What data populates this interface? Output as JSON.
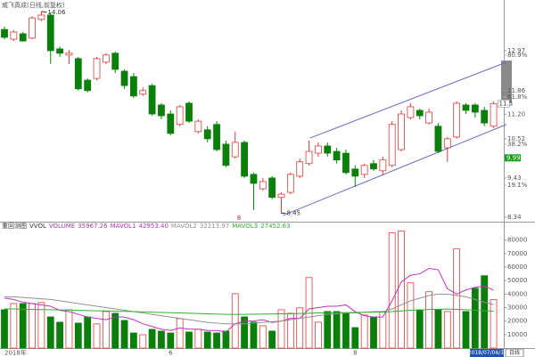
{
  "chart_data": [
    {
      "type": "candlestick",
      "title": "威飞真成(日线,前复权)",
      "categories": [
        "2018年",
        null,
        null,
        null,
        null,
        null,
        null,
        null,
        null,
        null,
        null,
        null,
        null,
        null,
        null,
        null,
        null,
        null,
        "6",
        null,
        null,
        null,
        null,
        null,
        null,
        null,
        null,
        null,
        null,
        null,
        null,
        null,
        null,
        null,
        null,
        null,
        null,
        null,
        "8",
        null,
        null,
        null,
        null,
        null,
        null,
        null,
        null,
        null,
        null,
        null,
        null,
        null,
        null,
        null
      ],
      "ohlc": [
        [
          13.56,
          13.64,
          13.29,
          13.34
        ],
        [
          13.29,
          13.54,
          13.24,
          13.49
        ],
        [
          13.44,
          13.49,
          13.22,
          13.24
        ],
        [
          13.32,
          13.93,
          13.29,
          13.88
        ],
        [
          13.84,
          14.06,
          13.79,
          13.96
        ],
        [
          13.96,
          14.03,
          12.6,
          12.97
        ],
        [
          13.02,
          13.09,
          12.8,
          12.9
        ],
        [
          12.85,
          12.99,
          12.6,
          12.9
        ],
        [
          12.75,
          12.8,
          11.86,
          11.91
        ],
        [
          12.15,
          12.2,
          11.81,
          11.86
        ],
        [
          12.2,
          12.8,
          12.15,
          12.75
        ],
        [
          12.65,
          12.9,
          12.6,
          12.85
        ],
        [
          12.9,
          12.94,
          12.35,
          12.45
        ],
        [
          12.4,
          12.45,
          11.91,
          12.0
        ],
        [
          12.25,
          12.35,
          11.66,
          11.71
        ],
        [
          11.76,
          11.95,
          11.71,
          11.86
        ],
        [
          12.0,
          12.05,
          11.16,
          11.21
        ],
        [
          11.46,
          11.51,
          11.06,
          11.16
        ],
        [
          11.21,
          11.31,
          10.62,
          10.67
        ],
        [
          10.92,
          11.46,
          10.87,
          11.41
        ],
        [
          11.51,
          11.56,
          10.96,
          11.01
        ],
        [
          10.72,
          11.06,
          10.67,
          11.01
        ],
        [
          10.77,
          10.87,
          10.42,
          10.52
        ],
        [
          10.92,
          11.01,
          10.17,
          10.22
        ],
        [
          10.37,
          10.47,
          9.73,
          9.78
        ],
        [
          10.02,
          10.72,
          9.97,
          10.42
        ],
        [
          10.42,
          10.47,
          9.43,
          9.48
        ],
        [
          9.53,
          9.58,
          8.54,
          9.28
        ],
        [
          9.13,
          9.43,
          9.08,
          9.33
        ],
        [
          9.43,
          9.48,
          8.84,
          8.89
        ],
        [
          8.89,
          9.03,
          8.45,
          8.98
        ],
        [
          9.03,
          9.58,
          8.98,
          9.53
        ],
        [
          9.48,
          9.97,
          9.43,
          9.88
        ],
        [
          9.83,
          10.47,
          9.78,
          10.17
        ],
        [
          10.12,
          10.42,
          10.02,
          10.32
        ],
        [
          10.32,
          10.42,
          10.02,
          10.12
        ],
        [
          10.17,
          10.27,
          9.83,
          9.93
        ],
        [
          10.12,
          10.22,
          9.53,
          9.58
        ],
        [
          9.68,
          9.78,
          9.18,
          9.48
        ],
        [
          9.53,
          9.83,
          9.43,
          9.78
        ],
        [
          9.83,
          9.93,
          9.63,
          9.68
        ],
        [
          9.63,
          10.02,
          9.53,
          9.93
        ],
        [
          9.78,
          11.01,
          9.73,
          10.92
        ],
        [
          10.22,
          11.31,
          10.17,
          11.21
        ],
        [
          11.11,
          11.51,
          11.06,
          11.41
        ],
        [
          11.31,
          11.36,
          11.06,
          11.16
        ],
        [
          10.96,
          11.36,
          10.92,
          11.26
        ],
        [
          10.87,
          10.96,
          10.12,
          10.17
        ],
        [
          10.27,
          10.57,
          9.88,
          10.52
        ],
        [
          10.57,
          11.56,
          10.52,
          11.51
        ],
        [
          11.46,
          11.51,
          11.21,
          11.31
        ],
        [
          11.46,
          11.51,
          11.11,
          11.26
        ],
        [
          11.31,
          11.41,
          10.87,
          10.96
        ],
        [
          10.87,
          11.56,
          10.82,
          11.5
        ]
      ],
      "up_color": "#e03a3a",
      "down_color": "#0a800a",
      "ylim": [
        8.19,
        14.38
      ],
      "yticks": [
        12.97,
        11.86,
        {
          "value": 11.2,
          "label": "11.20"
        },
        10.52,
        9.43,
        8.34
      ],
      "levels": [
        {
          "value": 12.85,
          "label": "80.9%"
        },
        {
          "value": 11.68,
          "label": "61.8%"
        },
        {
          "value": 10.37,
          "label": "38.2%"
        },
        {
          "value": 9.23,
          "label": "19.1%"
        }
      ],
      "marker_price": 9.99,
      "flag": "8",
      "trend_lines": [
        [
          [
            33.1,
            10.54
          ],
          [
            54.4,
            12.65
          ]
        ],
        [
          [
            30.2,
            8.39
          ],
          [
            54.4,
            10.92
          ]
        ]
      ],
      "trend_color": "#6a6ac8"
    },
    {
      "type": "volume",
      "title": "重回测图",
      "indicator": "VVOL",
      "ylim": [
        0,
        89000
      ],
      "yticks": [
        10000,
        20000,
        30000,
        40000,
        50000,
        60000,
        70000,
        80000
      ],
      "series": [
        {
          "name": "VOLUME",
          "color": "#a040a0",
          "values": [
            28400,
            33000,
            33000,
            33000,
            33700,
            23100,
            19200,
            28400,
            18500,
            23100,
            17900,
            27100,
            25800,
            20500,
            11200,
            9900,
            13900,
            12600,
            11200,
            21800,
            11900,
            13900,
            11900,
            11200,
            12600,
            40300,
            23100,
            19200,
            16500,
            12600,
            28400,
            25800,
            29800,
            52200,
            19200,
            27100,
            27100,
            25800,
            15200,
            24500,
            23100,
            27100,
            85300,
            86600,
            48300,
            28400,
            41700,
            28400,
            27100,
            73400,
            27100,
            44300,
            53600,
            35967.26
          ]
        },
        {
          "name": "MAVOL1",
          "color": "#c030c0",
          "values": [
            37000,
            36000,
            34000,
            33000,
            32000,
            31000,
            28000,
            27000,
            25000,
            23000,
            22000,
            21000,
            23000,
            23000,
            21000,
            18000,
            16000,
            14000,
            13000,
            15000,
            14000,
            14000,
            13000,
            13000,
            12000,
            18000,
            20000,
            20000,
            21000,
            19000,
            20000,
            22000,
            22000,
            29000,
            30000,
            31000,
            31000,
            32000,
            27000,
            24000,
            23000,
            23000,
            35000,
            49000,
            54000,
            55000,
            59000,
            58000,
            44000,
            40000,
            43000,
            45000,
            46000,
            42953.4
          ],
          "value_labels": [
            null,
            null,
            null,
            null,
            null,
            null,
            null,
            null,
            null,
            null,
            null,
            null,
            null,
            null,
            null,
            null,
            null,
            null,
            null,
            null,
            null,
            null,
            null,
            null,
            null,
            null,
            null,
            null,
            null,
            null,
            null,
            null,
            null,
            null,
            null,
            null,
            null,
            null,
            null,
            null,
            null,
            null,
            null,
            null,
            null,
            null,
            null,
            null,
            null,
            null,
            null,
            null,
            null,
            "42953.40"
          ]
        },
        {
          "name": "MAVOL2",
          "color": "#909090",
          "values": [
            38000,
            38000,
            37500,
            37000,
            36500,
            36000,
            35000,
            34000,
            33000,
            32000,
            31000,
            30000,
            29000,
            28000,
            27000,
            26000,
            25000,
            24000,
            23000,
            22000,
            21000,
            20000,
            19000,
            18500,
            18000,
            18000,
            18000,
            18500,
            19000,
            19500,
            20000,
            21000,
            22000,
            23000,
            24000,
            25000,
            25500,
            26000,
            26000,
            26500,
            27000,
            27000,
            29000,
            32000,
            35000,
            37000,
            39000,
            40000,
            40000,
            39000,
            38000,
            36000,
            34000,
            32213.97
          ]
        },
        {
          "name": "MAVOL3",
          "color": "#30b030",
          "values": [
            29000,
            29000,
            28800,
            28600,
            28500,
            28400,
            28300,
            28200,
            28000,
            27800,
            27600,
            27500,
            27300,
            27200,
            27000,
            26800,
            26600,
            26400,
            26200,
            26000,
            25800,
            25600,
            25400,
            25200,
            25000,
            25000,
            25000,
            25100,
            25200,
            25300,
            25400,
            25500,
            25600,
            25800,
            26000,
            26100,
            26200,
            26300,
            26400,
            26500,
            26600,
            26700,
            27000,
            27500,
            28000,
            28300,
            28600,
            28800,
            28900,
            28700,
            28400,
            28000,
            27700,
            27452.63
          ]
        }
      ]
    }
  ],
  "footer": {
    "cursor_date": "2018/07/06/五",
    "period": "日线"
  }
}
